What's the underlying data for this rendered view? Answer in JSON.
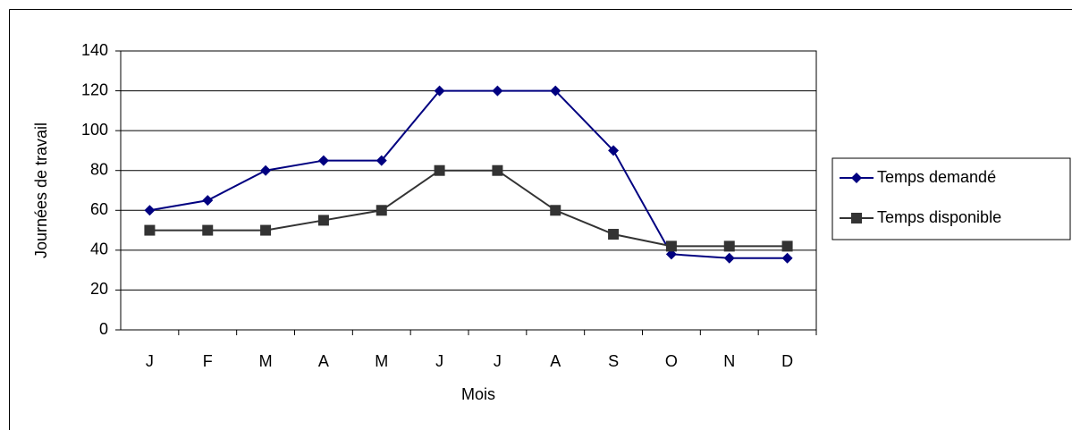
{
  "chart_data": {
    "type": "line",
    "x_label": "Mois",
    "y_label": "Journées de travail",
    "categories": [
      "J",
      "F",
      "M",
      "A",
      "M",
      "J",
      "J",
      "A",
      "S",
      "O",
      "N",
      "D"
    ],
    "series": [
      {
        "name": "Temps demandé",
        "color": "#000080",
        "marker": "diamond",
        "values": [
          60,
          65,
          80,
          85,
          85,
          120,
          120,
          120,
          90,
          38,
          36,
          36
        ]
      },
      {
        "name": "Temps disponible",
        "color": "#333333",
        "marker": "square",
        "values": [
          50,
          50,
          50,
          55,
          60,
          80,
          80,
          60,
          48,
          42,
          42,
          42
        ]
      }
    ],
    "ylim": [
      0,
      140
    ],
    "yticks": [
      0,
      20,
      40,
      60,
      80,
      100,
      120,
      140
    ],
    "grid": true,
    "legend": "right"
  }
}
